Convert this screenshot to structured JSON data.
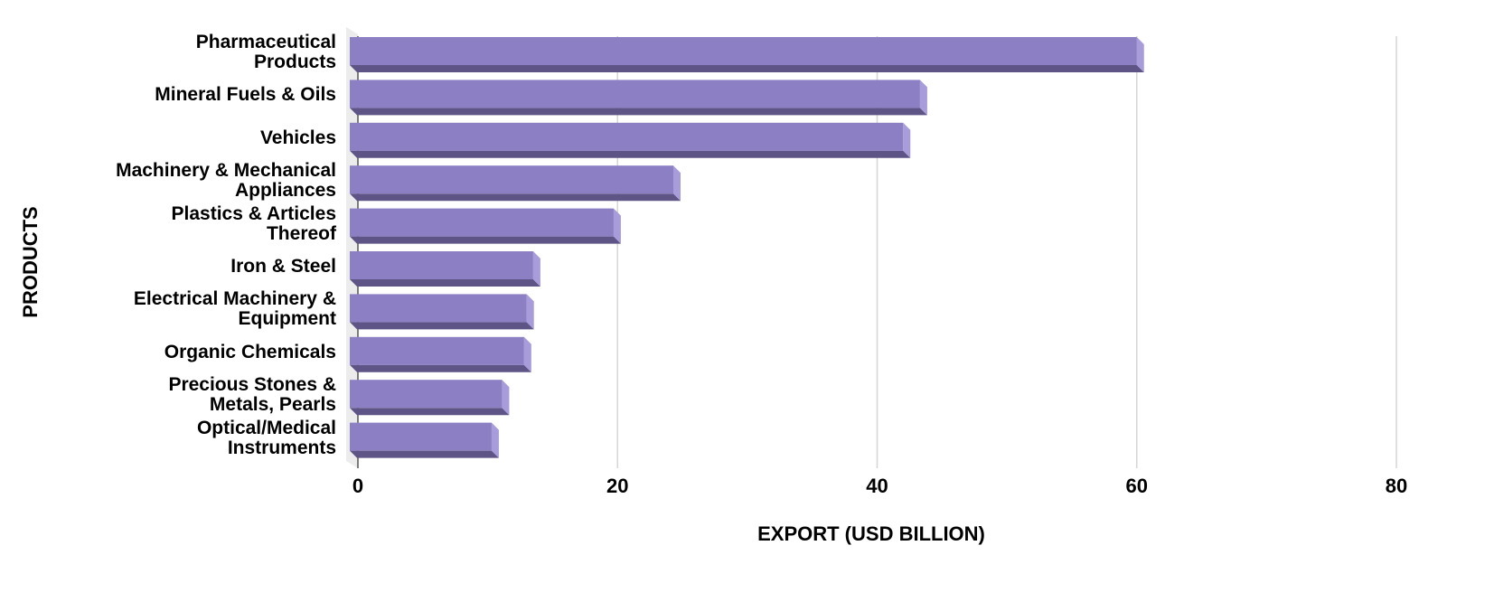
{
  "chart_data": {
    "type": "bar",
    "orientation": "horizontal",
    "categories": [
      "Pharmaceutical\nProducts",
      "Mineral Fuels & Oils",
      "Vehicles",
      "Machinery & Mechanical\nAppliances",
      "Plastics & Articles\nThereof",
      "Iron & Steel",
      "Electrical Machinery &\nEquipment",
      "Organic Chemicals",
      "Precious Stones &\nMetals, Pearls",
      "Optical/Medical\nInstruments"
    ],
    "values": [
      60,
      43.3,
      42,
      24.3,
      19.7,
      13.5,
      13,
      12.8,
      11.1,
      10.3
    ],
    "color": "#8c7fc4",
    "xlim": [
      0,
      80
    ],
    "xticks": [
      0,
      20,
      40,
      60,
      80
    ],
    "grid": true,
    "xlabel": "EXPORT (USD BILLION)",
    "ylabel": "PRODUCTS"
  }
}
